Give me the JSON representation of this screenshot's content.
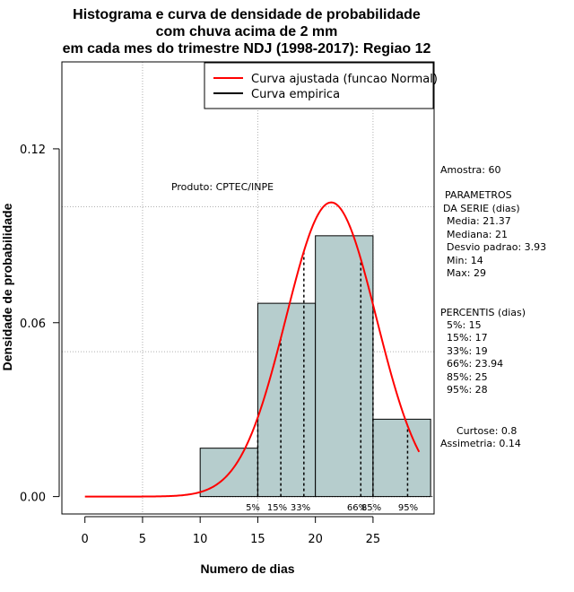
{
  "chart_data": {
    "type": "histogram",
    "title_lines": [
      "Histograma e curva de densidade de probabilidade",
      "com chuva acima de 2 mm",
      "em cada mes do trimestre NDJ (1998-2017): Regiao 12"
    ],
    "xlabel": "Numero de dias",
    "ylabel": "Densidade de probabilidade",
    "xlim": [
      -2,
      30.3
    ],
    "ylim": [
      -0.006,
      0.15
    ],
    "x_ticks": [
      0,
      5,
      10,
      15,
      20,
      25
    ],
    "y_ticks": [
      0.0,
      0.06,
      0.12
    ],
    "y_tick_labels": [
      "0.00",
      "0.06",
      "0.12"
    ],
    "grid_x": [
      5,
      15,
      25
    ],
    "grid_y": [
      0.05,
      0.1
    ],
    "bars": [
      {
        "x0": 10,
        "x1": 15,
        "density": 0.0167
      },
      {
        "x0": 15,
        "x1": 20,
        "density": 0.0667
      },
      {
        "x0": 20,
        "x1": 25,
        "density": 0.09
      },
      {
        "x0": 25,
        "x1": 30,
        "density": 0.0267
      }
    ],
    "bar_color": "#b6cdcd",
    "normal_curve": {
      "mean": 21.37,
      "sd": 3.93,
      "x_from": 0,
      "x_to": 29,
      "color": "#ff0000"
    },
    "percentiles": [
      {
        "label": "5%",
        "value": 15
      },
      {
        "label": "15%",
        "value": 17
      },
      {
        "label": "33%",
        "value": 19
      },
      {
        "label": "66%",
        "value": 23.94
      },
      {
        "label": "85%",
        "value": 25
      },
      {
        "label": "95%",
        "value": 28
      }
    ],
    "legend": [
      {
        "label": "Curva ajustada (funcao Normal)",
        "color": "#ff0000"
      },
      {
        "label": "Curva empirica",
        "color": "#000000"
      }
    ],
    "produto": "Produto: CPTEC/INPE",
    "stats_lines": [
      "Amostra: 60",
      " PARAMETROS",
      "DA SERIE (dias)",
      "Media: 21.37",
      "Mediana: 21",
      "Desvio padrao: 3.93",
      "Min: 14",
      "Max: 29",
      "PERCENTIS (dias)",
      "5%: 15",
      "15%: 17",
      "33%: 19",
      "66%: 23.94",
      "85%: 25",
      "95%: 28",
      "Curtose: 0.8",
      "Assimetria: 0.14"
    ]
  }
}
